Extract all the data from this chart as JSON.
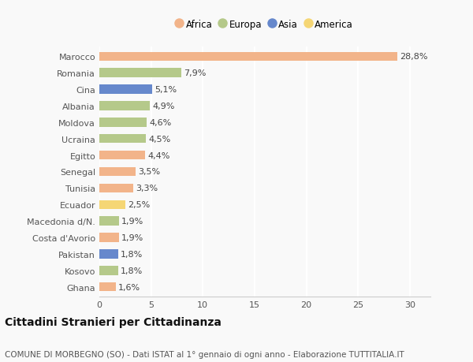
{
  "countries": [
    "Marocco",
    "Romania",
    "Cina",
    "Albania",
    "Moldova",
    "Ucraina",
    "Egitto",
    "Senegal",
    "Tunisia",
    "Ecuador",
    "Macedonia d/N.",
    "Costa d'Avorio",
    "Pakistan",
    "Kosovo",
    "Ghana"
  ],
  "values": [
    28.8,
    7.9,
    5.1,
    4.9,
    4.6,
    4.5,
    4.4,
    3.5,
    3.3,
    2.5,
    1.9,
    1.9,
    1.8,
    1.8,
    1.6
  ],
  "labels": [
    "28,8%",
    "7,9%",
    "5,1%",
    "4,9%",
    "4,6%",
    "4,5%",
    "4,4%",
    "3,5%",
    "3,3%",
    "2,5%",
    "1,9%",
    "1,9%",
    "1,8%",
    "1,8%",
    "1,6%"
  ],
  "continents": [
    "Africa",
    "Europa",
    "Asia",
    "Europa",
    "Europa",
    "Europa",
    "Africa",
    "Africa",
    "Africa",
    "America",
    "Europa",
    "Africa",
    "Asia",
    "Europa",
    "Africa"
  ],
  "continent_colors": {
    "Africa": "#F2B48A",
    "Europa": "#B5C98A",
    "Asia": "#6688CC",
    "America": "#F5D675"
  },
  "legend_order": [
    "Africa",
    "Europa",
    "Asia",
    "America"
  ],
  "title": "Cittadini Stranieri per Cittadinanza",
  "subtitle": "COMUNE DI MORBEGNO (SO) - Dati ISTAT al 1° gennaio di ogni anno - Elaborazione TUTTITALIA.IT",
  "xlim": [
    0,
    32
  ],
  "xticks": [
    0,
    5,
    10,
    15,
    20,
    25,
    30
  ],
  "background_color": "#f9f9f9",
  "bar_height": 0.55,
  "label_fontsize": 8,
  "tick_fontsize": 8,
  "title_fontsize": 10,
  "subtitle_fontsize": 7.5
}
